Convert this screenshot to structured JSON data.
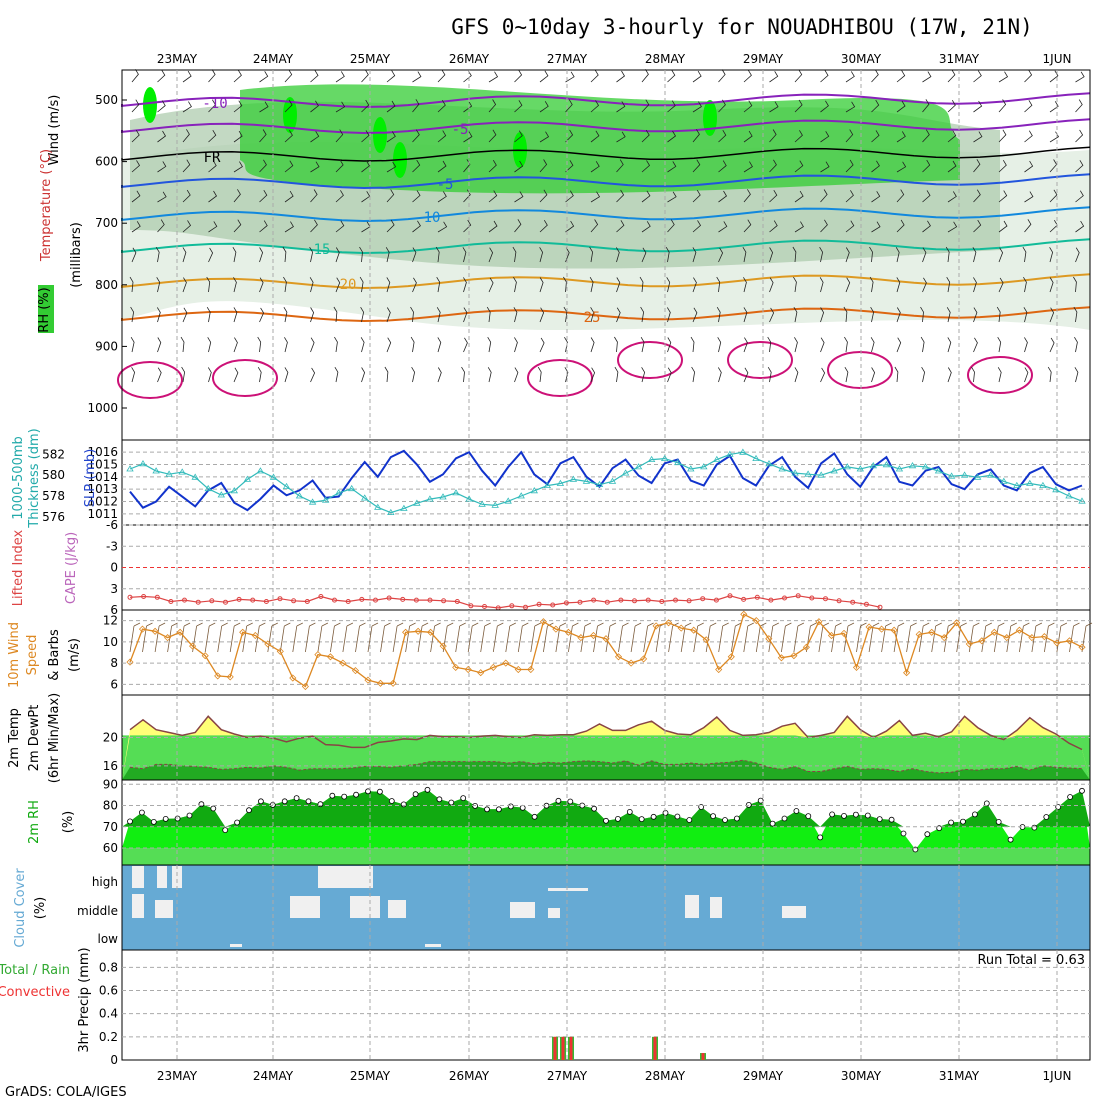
{
  "title": "GFS 0~10day 3-hourly for NOUADHIBOU (17W, 21N)",
  "credit": "GrADS: COLA/IGES",
  "run_total": "Run Total = 0.63",
  "dates": [
    "23MAY",
    "24MAY",
    "25MAY",
    "26MAY",
    "27MAY",
    "28MAY",
    "29MAY",
    "30MAY",
    "31MAY",
    "1JUN"
  ],
  "colors": {
    "accent": "#0033cc",
    "rh_light": "#e6f0e6",
    "rh_mid": "#a9c9a9",
    "rh_green": "#33cc33",
    "rh_bright": "#00ee00",
    "cloud": "#66aad4",
    "cloud_gap": "#f0f0f0"
  },
  "panels": {
    "upper": {
      "ylabels": [
        "Wind (m/s)",
        "Temperature (°C)",
        "RH (%)",
        "(millibars)"
      ],
      "yticks": [
        "500",
        "600",
        "700",
        "800",
        "900",
        "1000"
      ]
    },
    "slp": {
      "ylabels": [
        "1000-500mb",
        "Thickness (dm)",
        "SLP (mb)"
      ],
      "left_ticks": [
        "582",
        "580",
        "578",
        "576"
      ],
      "right_ticks": [
        "1016",
        "1015",
        "1014",
        "1013",
        "1012",
        "1011"
      ]
    },
    "li": {
      "ylabels": [
        "Lifted Index",
        "CAPE (J/kg)"
      ],
      "ticks": [
        "-6",
        "-3",
        "0",
        "3",
        "6"
      ]
    },
    "wind10": {
      "ylabels": [
        "10m Wind",
        "Speed",
        "& Barbs",
        "(m/s)"
      ],
      "ticks": [
        "12",
        "10",
        "8",
        "6"
      ]
    },
    "temp2m": {
      "ylabels": [
        "2m Temp",
        "2m DewPt",
        "(6hr Min/Max)"
      ],
      "ticks": [
        "20",
        "16"
      ]
    },
    "rh2m": {
      "ylabels": [
        "2m RH",
        "(%)"
      ],
      "ticks": [
        "90",
        "80",
        "70",
        "60"
      ]
    },
    "cloud": {
      "ylabels": [
        "Cloud Cover",
        "(%)"
      ],
      "ticks": [
        "high",
        "middle",
        "low"
      ]
    },
    "precip": {
      "ylabels": [
        "Total / Rain",
        "Convective",
        "3hr Precip (mm)"
      ],
      "ticks": [
        "0.8",
        "0.6",
        "0.4",
        "0.2",
        "0"
      ]
    }
  },
  "chart_data": [
    {
      "type": "line",
      "title": "1000-500mb Thickness (dm) / SLP (mb)",
      "series": [
        {
          "name": "SLP (mb)",
          "y_range": [
            1010.5,
            1016.5
          ],
          "values": [
            1012.8,
            1011.5,
            1012.0,
            1013.2,
            1012.4,
            1011.6,
            1012.9,
            1013.5,
            1011.9,
            1011.3,
            1012.2,
            1013.3,
            1012.5,
            1012.9,
            1013.7,
            1012.3,
            1012.4,
            1013.9,
            1015.2,
            1014.0,
            1015.6,
            1016.1,
            1015.0,
            1013.6,
            1014.2,
            1015.5,
            1016.0,
            1014.5,
            1013.3,
            1014.8,
            1016.0,
            1014.2,
            1013.4,
            1015.1,
            1015.6,
            1014.0,
            1013.2,
            1014.7,
            1015.4,
            1014.1,
            1013.5,
            1015.1,
            1015.4,
            1013.7,
            1013.3,
            1015.0,
            1015.7,
            1013.9,
            1013.3,
            1014.9,
            1015.6,
            1014.0,
            1013.1,
            1015.1,
            1015.9,
            1014.2,
            1013.2,
            1014.8,
            1015.6,
            1013.6,
            1013.3,
            1014.5,
            1014.8,
            1013.4,
            1013.0,
            1014.2,
            1014.6,
            1013.3,
            1012.9,
            1014.3,
            1014.8,
            1013.4,
            1012.9,
            1013.3
          ]
        },
        {
          "name": "1000-500mb Thickness (dm)",
          "y_range": [
            575.5,
            583
          ],
          "values": [
            580.6,
            581.1,
            580.4,
            580.1,
            580.3,
            579.8,
            578.7,
            578.1,
            578.5,
            579.6,
            580.4,
            579.8,
            578.9,
            578.0,
            577.4,
            577.6,
            578.3,
            578.7,
            577.8,
            576.9,
            576.4,
            576.8,
            577.3,
            577.7,
            577.9,
            578.3,
            577.7,
            577.2,
            577.1,
            577.5,
            578.0,
            578.5,
            579.0,
            579.2,
            579.6,
            579.4,
            579.1,
            579.4,
            580.2,
            580.8,
            581.5,
            581.6,
            581.2,
            580.6,
            580.8,
            581.5,
            582.0,
            582.2,
            581.6,
            581.1,
            580.6,
            580.2,
            580.1,
            580.0,
            580.4,
            580.8,
            580.6,
            580.9,
            581.0,
            580.6,
            580.9,
            580.8,
            580.4,
            579.9,
            580.0,
            579.8,
            580.0,
            579.4,
            579.0,
            579.2,
            579.0,
            578.6,
            578.0,
            577.5
          ]
        }
      ]
    },
    {
      "type": "line",
      "title": "Lifted Index",
      "ylim": [
        -6,
        6
      ],
      "values": [
        4.2,
        4.1,
        4.2,
        4.8,
        4.6,
        4.9,
        4.7,
        4.9,
        4.5,
        4.6,
        4.8,
        4.4,
        4.7,
        4.8,
        4.1,
        4.6,
        4.8,
        4.5,
        4.6,
        4.3,
        4.5,
        4.6,
        4.6,
        4.7,
        4.8,
        5.4,
        5.5,
        5.7,
        5.4,
        5.6,
        5.2,
        5.3,
        5.0,
        4.9,
        4.6,
        4.9,
        4.6,
        4.7,
        4.6,
        4.8,
        4.6,
        4.7,
        4.4,
        4.6,
        4.0,
        4.5,
        4.2,
        4.6,
        4.3,
        4.0,
        4.3,
        4.4,
        4.7,
        4.9,
        5.2,
        5.6
      ]
    },
    {
      "type": "line",
      "title": "10m Wind Speed (m/s)",
      "ylim": [
        5,
        13
      ],
      "values": [
        8.1,
        11.2,
        11.0,
        10.4,
        10.9,
        9.6,
        8.7,
        6.8,
        6.7,
        10.9,
        10.6,
        9.8,
        9.1,
        6.6,
        5.8,
        8.8,
        8.6,
        8.0,
        7.3,
        6.4,
        6.1,
        6.1,
        10.9,
        11.0,
        10.9,
        9.6,
        7.6,
        7.4,
        7.1,
        7.6,
        8.0,
        7.4,
        7.4,
        11.9,
        11.2,
        10.9,
        10.4,
        10.6,
        10.3,
        8.6,
        8.0,
        8.4,
        11.5,
        11.8,
        11.3,
        11.1,
        10.2,
        7.4,
        8.6,
        12.6,
        12.0,
        10.3,
        8.5,
        8.7,
        9.5,
        11.9,
        10.6,
        10.8,
        7.6,
        11.4,
        11.2,
        11.1,
        7.1,
        10.7,
        10.9,
        10.4,
        11.8,
        9.8,
        10.1,
        10.9,
        10.4,
        11.1,
        10.4,
        10.5,
        9.9,
        10.1,
        9.5
      ]
    },
    {
      "type": "area",
      "title": "2m Temp / 2m DewPt",
      "ylim": [
        14,
        26
      ],
      "series": [
        {
          "name": "2m Temp",
          "values": [
            21.1,
            22.5,
            21.1,
            20.7,
            20.3,
            20.7,
            23.0,
            21.1,
            20.5,
            20.0,
            20.2,
            19.9,
            19.4,
            19.9,
            20.2,
            19.0,
            18.9,
            18.6,
            18.6,
            19.3,
            19.5,
            19.8,
            19.7,
            20.3,
            20.1,
            20.1,
            20.0,
            20.2,
            20.3,
            20.1,
            20.0,
            20.4,
            20.3,
            20.4,
            20.4,
            20.9,
            21.9,
            21.0,
            21.0,
            21.8,
            22.3,
            21.0,
            20.5,
            20.4,
            21.4,
            22.9,
            21.0,
            20.3,
            20.4,
            20.7,
            21.6,
            22.0,
            20.0,
            20.3,
            20.7,
            23.0,
            21.1,
            20.0,
            20.9,
            22.4,
            20.3,
            20.6,
            20.1,
            20.8,
            23.0,
            21.4,
            20.3,
            19.7,
            21.0,
            22.8,
            21.4,
            20.5,
            19.2,
            18.3
          ]
        },
        {
          "name": "2m DewPt",
          "values": [
            15.8,
            15.6,
            16.2,
            16.2,
            16.0,
            15.9,
            15.8,
            15.5,
            15.6,
            15.8,
            15.7,
            16.0,
            15.8,
            15.4,
            15.6,
            15.6,
            15.6,
            15.7,
            15.9,
            15.9,
            15.8,
            16.0,
            16.2,
            16.6,
            16.6,
            16.6,
            16.6,
            16.6,
            16.6,
            16.4,
            16.6,
            16.3,
            16.5,
            16.4,
            16.6,
            16.7,
            16.6,
            16.4,
            16.7,
            16.1,
            16.7,
            16.2,
            16.2,
            16.4,
            16.2,
            16.4,
            16.5,
            16.8,
            16.4,
            15.8,
            15.5,
            15.9,
            15.2,
            15.2,
            15.6,
            15.9,
            15.5,
            15.6,
            15.5,
            15.2,
            15.6,
            15.2,
            15.0,
            15.1,
            15.5,
            15.4,
            15.6,
            15.6,
            15.9,
            15.4,
            16.0,
            15.8,
            15.7,
            15.6
          ]
        }
      ]
    },
    {
      "type": "area",
      "title": "2m RH (%)",
      "ylim": [
        52,
        92
      ],
      "values": [
        72.5,
        76.7,
        72.3,
        73.7,
        73.9,
        75.3,
        80.6,
        78.6,
        68.4,
        72.0,
        77.8,
        82.0,
        80.3,
        82.0,
        83.5,
        82.0,
        80.6,
        84.6,
        84.2,
        85.1,
        86.7,
        86.5,
        82.1,
        80.5,
        85.3,
        87.4,
        82.9,
        81.4,
        83.5,
        79.8,
        78.2,
        78.2,
        79.6,
        78.9,
        74.7,
        79.9,
        82.2,
        81.9,
        80.0,
        78.5,
        72.8,
        73.7,
        77.0,
        73.6,
        74.7,
        76.5,
        74.8,
        73.2,
        79.3,
        75.0,
        73.2,
        73.9,
        80.3,
        82.3,
        71.5,
        73.9,
        77.4,
        75.0,
        65.0,
        75.8,
        75.1,
        75.7,
        75.3,
        73.6,
        73.3,
        66.8,
        59.3,
        66.5,
        69.3,
        72.0,
        72.4,
        75.8,
        81.0,
        72.3,
        63.9,
        69.9,
        69.6,
        74.6,
        79.3,
        84.0,
        86.9
      ]
    },
    {
      "type": "bar",
      "title": "3hr Precip (mm)",
      "ylim": [
        0,
        0.95
      ],
      "x": [
        "27MAY",
        "27MAY",
        "27MAY",
        "28MAY",
        "28MAY"
      ],
      "values": [
        0.2,
        0.2,
        0.2,
        0.2,
        0.06
      ]
    }
  ]
}
